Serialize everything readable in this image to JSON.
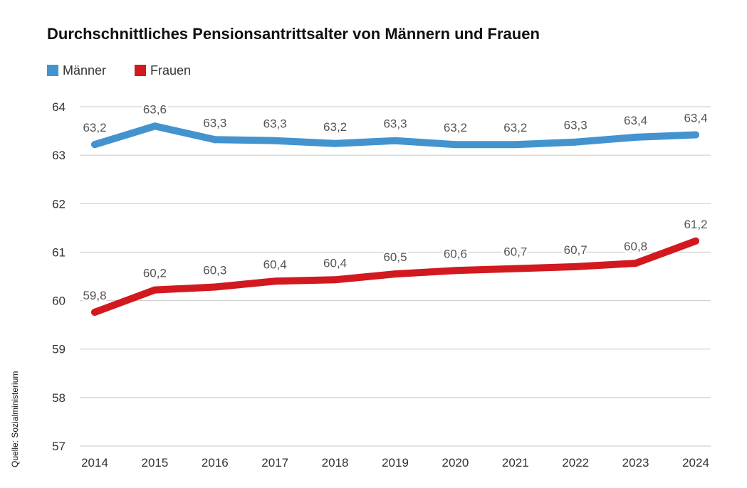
{
  "title": "Durchschnittliches Pensionsantrittsalter von Männern und Frauen",
  "source": "Quelle: Sozialministerium",
  "chart_data": {
    "type": "line",
    "title": "Durchschnittliches Pensionsantrittsalter von Männern und Frauen",
    "xlabel": "",
    "ylabel": "",
    "x": [
      "2014",
      "2015",
      "2016",
      "2017",
      "2018",
      "2019",
      "2020",
      "2021",
      "2022",
      "2023",
      "2024"
    ],
    "ylim": [
      57,
      64
    ],
    "yticks": [
      "57",
      "58",
      "59",
      "60",
      "61",
      "62",
      "63",
      "64"
    ],
    "grid": true,
    "legend": "top-left",
    "series": [
      {
        "name": "Männer",
        "color": "#4393cf",
        "values": [
          63.22,
          63.6,
          63.32,
          63.3,
          63.24,
          63.3,
          63.22,
          63.22,
          63.27,
          63.37,
          63.42
        ],
        "labels": [
          "63,2",
          "63,6",
          "63,3",
          "63,3",
          "63,2",
          "63,3",
          "63,2",
          "63,2",
          "63,3",
          "63,4",
          "63,4"
        ]
      },
      {
        "name": "Frauen",
        "color": "#d2191f",
        "values": [
          59.76,
          60.22,
          60.28,
          60.4,
          60.43,
          60.55,
          60.62,
          60.66,
          60.7,
          60.77,
          61.23
        ],
        "labels": [
          "59,8",
          "60,2",
          "60,3",
          "60,4",
          "60,4",
          "60,5",
          "60,6",
          "60,7",
          "60,7",
          "60,8",
          "61,2"
        ]
      }
    ]
  }
}
